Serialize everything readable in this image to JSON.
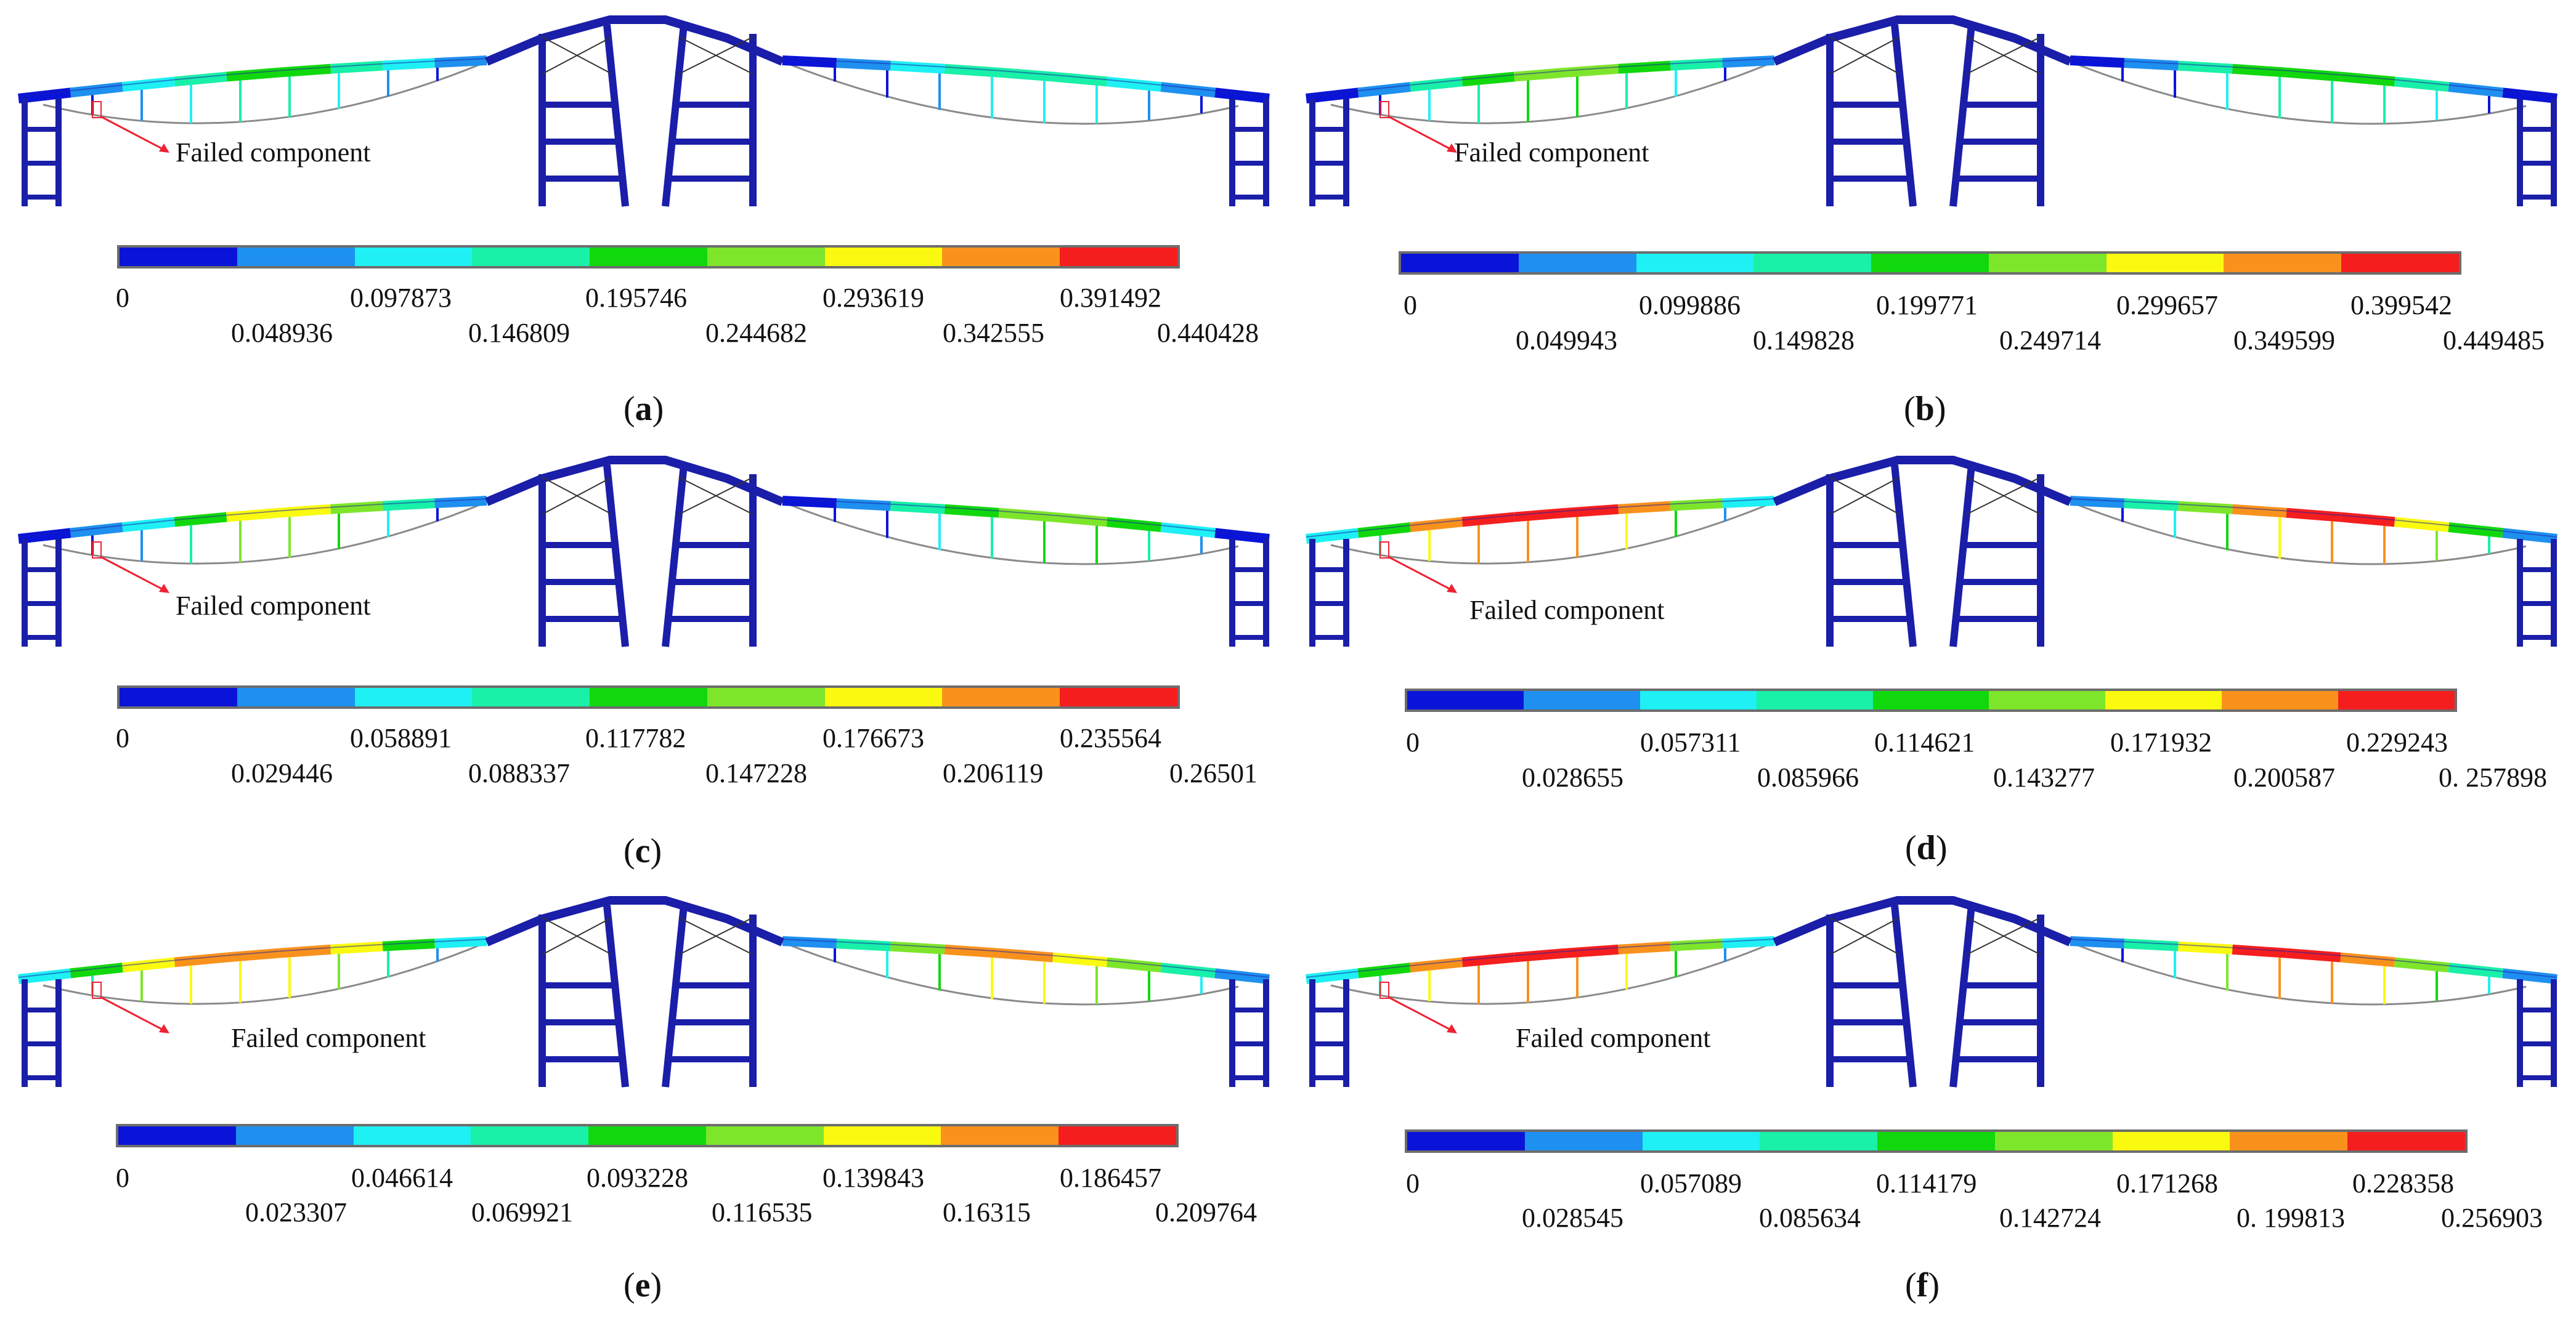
{
  "figure": {
    "colormap": [
      "#0a14d8",
      "#1e90ef",
      "#1ff0f4",
      "#19f0a8",
      "#11d80d",
      "#7ee62a",
      "#fafa10",
      "#f9921c",
      "#f51e1e"
    ],
    "structure_color": "#1a1ea8",
    "cable_color": "#8a8a8a",
    "panels": [
      {
        "id": "a",
        "failed_label": "Failed component",
        "caption_letter": "a",
        "ticks_upper": [
          "0",
          "0.097873",
          "0.195746",
          "0.293619",
          "0.391492"
        ],
        "ticks_lower": [
          "0.048936",
          "0.146809",
          "0.244682",
          "0.342555",
          "0.440428"
        ],
        "deck_profile": [
          0,
          1,
          2,
          3,
          4,
          4,
          3,
          2,
          1,
          0,
          0,
          1,
          2,
          3,
          3,
          3,
          2,
          1,
          0
        ]
      },
      {
        "id": "b",
        "failed_label": "Failed component",
        "caption_letter": "b",
        "ticks_upper": [
          "0",
          "0.099886",
          "0.199771",
          "0.299657",
          "0.399542"
        ],
        "ticks_lower": [
          "0.049943",
          "0.149828",
          "0.249714",
          "0.349599",
          "0.449485"
        ],
        "deck_profile": [
          0,
          1,
          3,
          4,
          5,
          5,
          4,
          3,
          1,
          0,
          0,
          1,
          3,
          4,
          4,
          4,
          3,
          1,
          0
        ]
      },
      {
        "id": "c",
        "failed_label": "Failed component",
        "caption_letter": "c",
        "ticks_upper": [
          "0",
          "0.058891",
          "0.117782",
          "0.176673",
          "0.235564"
        ],
        "ticks_lower": [
          "0.029446",
          "0.088337",
          "0.147228",
          "0.206119",
          "0.26501"
        ],
        "deck_profile": [
          0,
          1,
          2,
          4,
          6,
          6,
          5,
          3,
          1,
          0,
          0,
          1,
          3,
          4,
          5,
          5,
          4,
          2,
          0
        ]
      },
      {
        "id": "d",
        "failed_label": "Failed component",
        "caption_letter": "d",
        "ticks_upper": [
          "0",
          "0.057311",
          "0.114621",
          "0.171932",
          "0.229243"
        ],
        "ticks_lower": [
          "0.028655",
          "0.085966",
          "0.143277",
          "0.200587",
          "0. 257898"
        ],
        "deck_profile": [
          2,
          4,
          7,
          8,
          8,
          8,
          7,
          5,
          2,
          1,
          1,
          3,
          5,
          7,
          8,
          8,
          6,
          4,
          1
        ]
      },
      {
        "id": "e",
        "failed_label": "Failed component",
        "caption_letter": "e",
        "ticks_upper": [
          "0",
          "0.046614",
          "0.093228",
          "0.139843",
          "0.186457"
        ],
        "ticks_lower": [
          "0.023307",
          "0.069921",
          "0.116535",
          "0.16315",
          "0.209764"
        ],
        "deck_profile": [
          2,
          4,
          6,
          7,
          7,
          7,
          6,
          4,
          2,
          1,
          1,
          3,
          5,
          7,
          7,
          6,
          5,
          3,
          1
        ]
      },
      {
        "id": "f",
        "failed_label": "Failed component",
        "caption_letter": "f",
        "ticks_upper": [
          "0",
          "0.057089",
          "0.114179",
          "0.171268",
          "0.228358"
        ],
        "ticks_lower": [
          "0.028545",
          "0.085634",
          "0.142724",
          "0. 199813",
          "0.256903"
        ],
        "deck_profile": [
          2,
          4,
          7,
          8,
          8,
          8,
          7,
          5,
          2,
          1,
          1,
          3,
          6,
          8,
          8,
          7,
          5,
          3,
          1
        ]
      }
    ]
  }
}
